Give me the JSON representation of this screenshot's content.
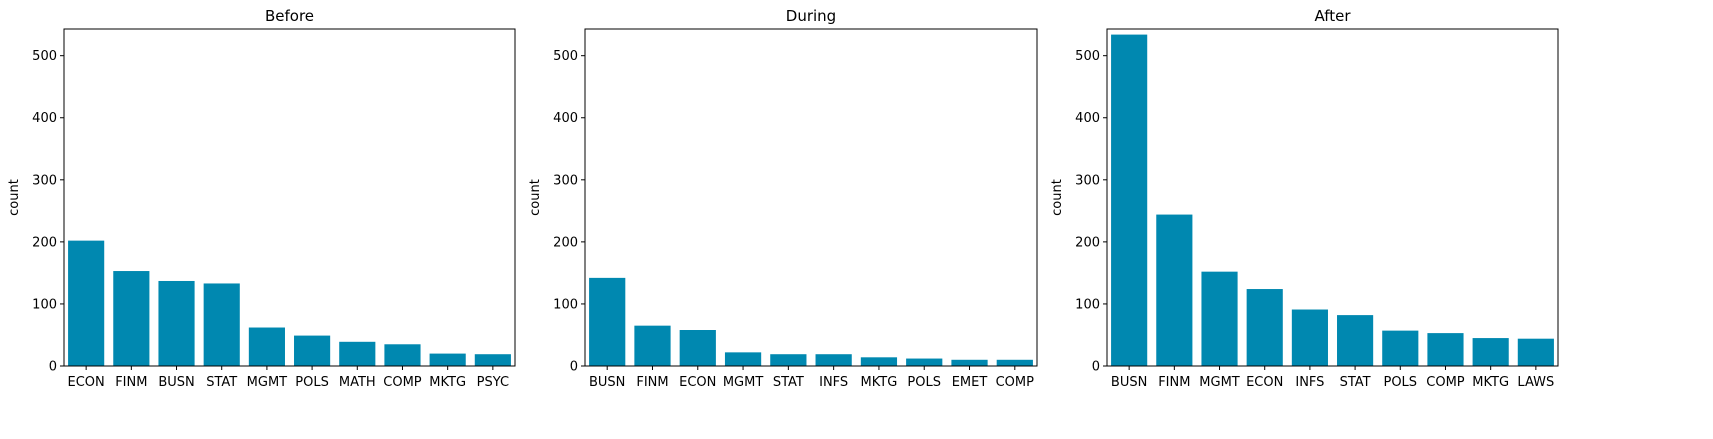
{
  "chart_data": [
    {
      "type": "bar",
      "title": "Before",
      "xlabel": "",
      "ylabel": "count",
      "ylim": [
        0,
        543
      ],
      "yticks": [
        0,
        100,
        200,
        300,
        400,
        500
      ],
      "grid": false,
      "color": "#0088b0",
      "categories": [
        "ECON",
        "FINM",
        "BUSN",
        "STAT",
        "MGMT",
        "POLS",
        "MATH",
        "COMP",
        "MKTG",
        "PSYC"
      ],
      "values": [
        202,
        153,
        137,
        133,
        62,
        49,
        39,
        35,
        20,
        19
      ]
    },
    {
      "type": "bar",
      "title": "During",
      "xlabel": "",
      "ylabel": "count",
      "ylim": [
        0,
        543
      ],
      "yticks": [
        0,
        100,
        200,
        300,
        400,
        500
      ],
      "grid": false,
      "color": "#0088b0",
      "categories": [
        "BUSN",
        "FINM",
        "ECON",
        "MGMT",
        "STAT",
        "INFS",
        "MKTG",
        "POLS",
        "EMET",
        "COMP"
      ],
      "values": [
        142,
        65,
        58,
        22,
        19,
        19,
        14,
        12,
        10,
        10
      ]
    },
    {
      "type": "bar",
      "title": "After",
      "xlabel": "",
      "ylabel": "count",
      "ylim": [
        0,
        543
      ],
      "yticks": [
        0,
        100,
        200,
        300,
        400,
        500
      ],
      "grid": false,
      "color": "#0088b0",
      "categories": [
        "BUSN",
        "FINM",
        "MGMT",
        "ECON",
        "INFS",
        "STAT",
        "POLS",
        "COMP",
        "MKTG",
        "LAWS"
      ],
      "values": [
        534,
        244,
        152,
        124,
        91,
        82,
        57,
        53,
        45,
        44
      ]
    }
  ]
}
